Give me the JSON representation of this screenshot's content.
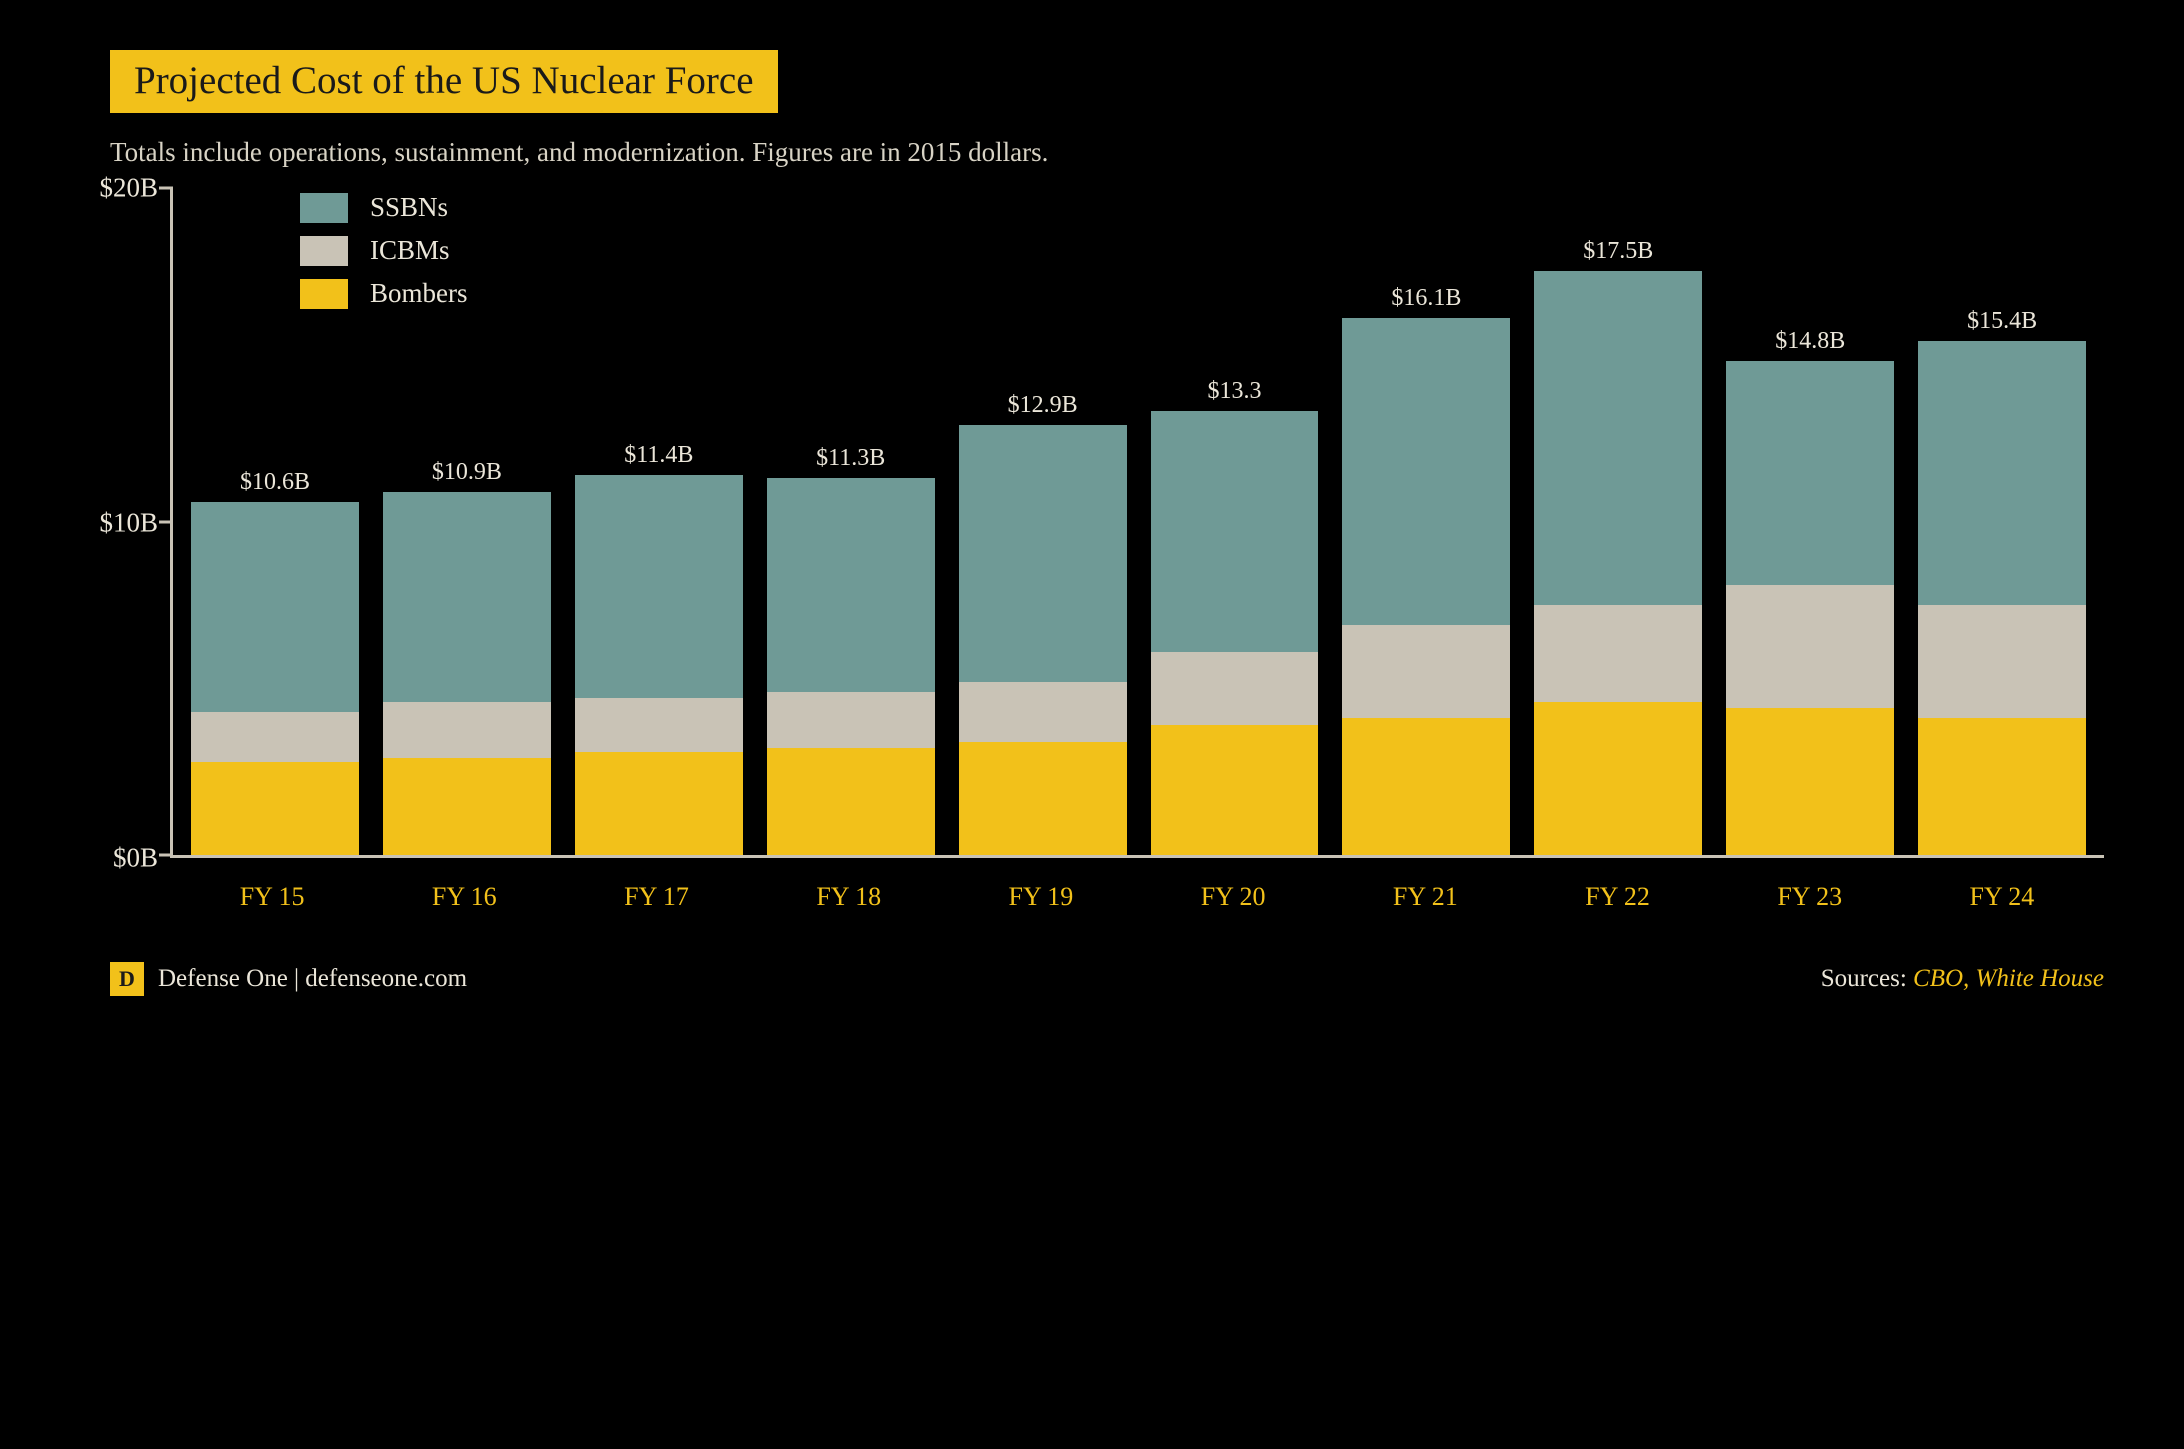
{
  "colors": {
    "background": "#000000",
    "title_bg": "#f2c11a",
    "title_text": "#1a1a1a",
    "subtitle_text": "#d8d3c5",
    "axis_text": "#ebe6d9",
    "axis_line": "#c9c3b6",
    "x_label_text": "#f2c11a",
    "bar_label_text": "#ebe6d9",
    "legend_text": "#ebe6d9",
    "brand_badge_bg": "#f2c11a",
    "brand_badge_text": "#1a1a1a",
    "brand_text": "#ebe6d9",
    "sources_accent": "#f2c11a"
  },
  "title": "Projected Cost of the US Nuclear Force",
  "subtitle": "Totals include operations, sustainment, and modernization. Figures are in 2015 dollars.",
  "chart": {
    "type": "stacked-bar",
    "y_axis": {
      "min": 0,
      "max": 20,
      "ticks": [
        {
          "value": 0,
          "label": "$0B"
        },
        {
          "value": 10,
          "label": "$10B"
        },
        {
          "value": 20,
          "label": "$20B"
        }
      ],
      "label_fontsize": 27
    },
    "x_label_fontsize": 26,
    "bar_label_fontsize": 24,
    "legend": {
      "items": [
        {
          "key": "ssbns",
          "label": "SSBNs",
          "color": "#6f9a96"
        },
        {
          "key": "icbms",
          "label": "ICBMs",
          "color": "#c9c3b6"
        },
        {
          "key": "bombers",
          "label": "Bombers",
          "color": "#f2c11a"
        }
      ],
      "fontsize": 27
    },
    "series_order_bottom_up": [
      "bombers",
      "icbms",
      "ssbns"
    ],
    "categories": [
      {
        "x": "FY 15",
        "total_label": "$10.6B",
        "total": 10.6,
        "bombers": 2.8,
        "icbms": 1.5,
        "ssbns": 6.3
      },
      {
        "x": "FY 16",
        "total_label": "$10.9B",
        "total": 10.9,
        "bombers": 2.9,
        "icbms": 1.7,
        "ssbns": 6.3
      },
      {
        "x": "FY 17",
        "total_label": "$11.4B",
        "total": 11.4,
        "bombers": 3.1,
        "icbms": 1.6,
        "ssbns": 6.7
      },
      {
        "x": "FY 18",
        "total_label": "$11.3B",
        "total": 11.3,
        "bombers": 3.2,
        "icbms": 1.7,
        "ssbns": 6.4
      },
      {
        "x": "FY 19",
        "total_label": "$12.9B",
        "total": 12.9,
        "bombers": 3.4,
        "icbms": 1.8,
        "ssbns": 7.7
      },
      {
        "x": "FY 20",
        "total_label": "$13.3",
        "total": 13.3,
        "bombers": 3.9,
        "icbms": 2.2,
        "ssbns": 7.2
      },
      {
        "x": "FY 21",
        "total_label": "$16.1B",
        "total": 16.1,
        "bombers": 4.1,
        "icbms": 2.8,
        "ssbns": 9.2
      },
      {
        "x": "FY 22",
        "total_label": "$17.5B",
        "total": 17.5,
        "bombers": 4.6,
        "icbms": 2.9,
        "ssbns": 10.0
      },
      {
        "x": "FY 23",
        "total_label": "$14.8B",
        "total": 14.8,
        "bombers": 4.4,
        "icbms": 3.7,
        "ssbns": 6.7
      },
      {
        "x": "FY 24",
        "total_label": "$15.4B",
        "total": 15.4,
        "bombers": 4.1,
        "icbms": 3.4,
        "ssbns": 7.9
      }
    ]
  },
  "footer": {
    "brand_badge": "D",
    "brand_text": "Defense One | defenseone.com",
    "sources_label": "Sources: ",
    "sources_value": "CBO, White House"
  }
}
